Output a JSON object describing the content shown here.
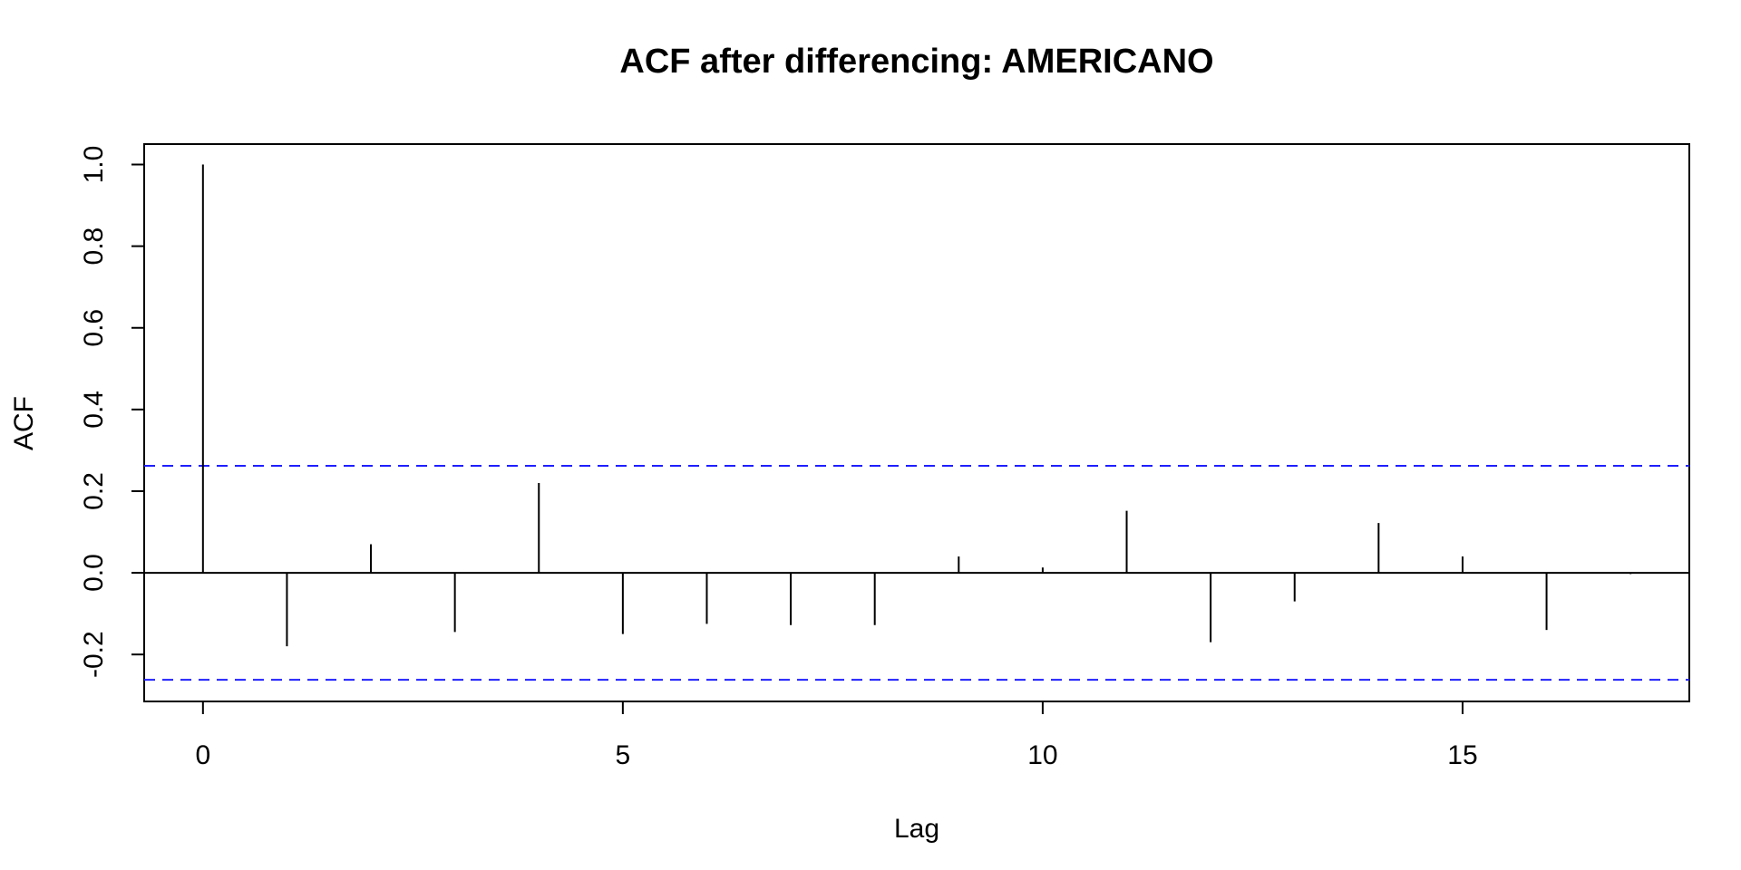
{
  "chart_data": {
    "type": "bar",
    "title": "ACF after differencing: AMERICANO",
    "xlabel": "Lag",
    "ylabel": "ACF",
    "x": [
      0,
      1,
      2,
      3,
      4,
      5,
      6,
      7,
      8,
      9,
      10,
      11,
      12,
      13,
      14,
      15,
      16,
      17
    ],
    "values": [
      1.0,
      -0.18,
      0.07,
      -0.145,
      0.22,
      -0.15,
      -0.125,
      -0.128,
      -0.128,
      0.04,
      0.013,
      0.152,
      -0.17,
      -0.07,
      0.122,
      0.04,
      -0.14,
      -0.003
    ],
    "xlim": [
      -0.7,
      17.7
    ],
    "ylim": [
      -0.315,
      1.05
    ],
    "x_ticks": [
      0,
      5,
      10,
      15
    ],
    "x_tick_labels": [
      "0",
      "5",
      "10",
      "15"
    ],
    "y_ticks": [
      -0.2,
      0.0,
      0.2,
      0.4,
      0.6,
      0.8,
      1.0
    ],
    "y_tick_labels": [
      "-0.2",
      "0.0",
      "0.2",
      "0.4",
      "0.6",
      "0.8",
      "1.0"
    ],
    "confidence_bounds": [
      0.262,
      -0.262
    ],
    "grid": false,
    "colors": {
      "spikes": "#000000",
      "confidence_bounds": "#1f1fff",
      "frame": "#000000"
    }
  }
}
